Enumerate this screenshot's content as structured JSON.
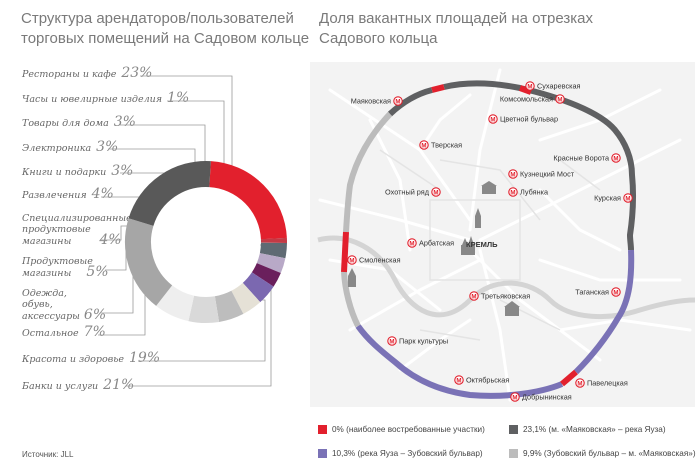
{
  "left": {
    "title_line1": "Структура арендаторов/пользователей",
    "title_line2": "торговых помещений на Садовом кольце",
    "source": "Источник: JLL"
  },
  "right": {
    "title_line1": "Доля вакантных площадей на отрезках",
    "title_line2": "Садового кольца"
  },
  "chart_data": [
    {
      "type": "pie",
      "title": "Структура арендаторов/пользователей торговых помещений на Садовом кольце",
      "categories": [
        "Рестораны и кафе",
        "Часы и ювелирные изделия",
        "Товары для дома",
        "Электроника",
        "Книги и подарки",
        "Развлечения",
        "Специализированные продуктовые магазины",
        "Продуктовые магазины",
        "Одежда, обувь, аксессуары",
        "Остальное",
        "Красота и здоровье",
        "Банки и услуги"
      ],
      "values": [
        23,
        1,
        3,
        3,
        3,
        4,
        4,
        5,
        6,
        7,
        19,
        21
      ],
      "value_labels": [
        "23%",
        "1%",
        "3%",
        "3%",
        "3%",
        "4%",
        "4%",
        "5%",
        "6%",
        "7%",
        "19%",
        "21%"
      ],
      "colors": [
        "#e2202d",
        "#c43a45",
        "#5f6a73",
        "#b8a9c7",
        "#6a1f5c",
        "#7b68b0",
        "#e5e1d6",
        "#bdbdbd",
        "#d9d9d9",
        "#eeeeee",
        "#a6a6a6",
        "#595959"
      ]
    },
    {
      "type": "map",
      "title": "Доля вакантных площадей на отрезках Садового кольца",
      "legend": [
        {
          "color": "#e2202d",
          "label": "0% (наиболее востребованные участки)"
        },
        {
          "color": "#5f6062",
          "label": "23,1% (м. «Маяковская» – река Яуза)"
        },
        {
          "color": "#7a72b6",
          "label": "10,3% (река Яуза – Зубовский бульвар)"
        },
        {
          "color": "#bcbcbc",
          "label": "9,9% (Зубовский бульвар – м. «Маяковская»)"
        }
      ]
    }
  ],
  "pie_labels": [
    {
      "name": "Рестораны и кафе",
      "pct": "23%"
    },
    {
      "name": "Часы и ювелирные изделия",
      "pct": "1%"
    },
    {
      "name": "Товары для дома",
      "pct": "3%"
    },
    {
      "name": "Электроника",
      "pct": "3%"
    },
    {
      "name": "Книги и подарки",
      "pct": "3%"
    },
    {
      "name": "Развлечения",
      "pct": "4%"
    },
    {
      "name": "Специализированные",
      "name2": "продуктовые",
      "name3": "магазины",
      "pct": "4%"
    },
    {
      "name": "Продуктовые",
      "name2": "магазины",
      "pct": "5%"
    },
    {
      "name": "Одежда,",
      "name2": "обувь,",
      "name3": "аксессуары",
      "pct": "6%"
    },
    {
      "name": "Остальное",
      "pct": "7%"
    },
    {
      "name": "Красота и здоровье",
      "pct": "19%"
    },
    {
      "name": "Банки и услуги",
      "pct": "21%"
    }
  ],
  "map": {
    "stations": {
      "mayakovskaya": "Маяковская",
      "sukharevskaya": "Сухаревская",
      "komsomolskaya": "Комсомольская",
      "tsvetnoy": "Цветной бульвар",
      "tverskaya": "Тверская",
      "krasnye_vorota": "Красные Ворота",
      "kuznetsky": "Кузнецкий Мост",
      "okhotny": "Охотный ряд",
      "lubyanka": "Лубянка",
      "kurskaya": "Курская",
      "arbatskaya": "Арбатская",
      "kreml": "КРЕМЛЬ",
      "smolenskaya": "Смоленская",
      "tretyakovskaya": "Третьяковская",
      "taganskaya": "Таганская",
      "park_kultury": "Парк культуры",
      "oktyabrskaya": "Октябрьская",
      "paveletskaya": "Павелецкая",
      "dobryninskaya": "Добрынинская"
    },
    "metro_symbol": "М"
  }
}
